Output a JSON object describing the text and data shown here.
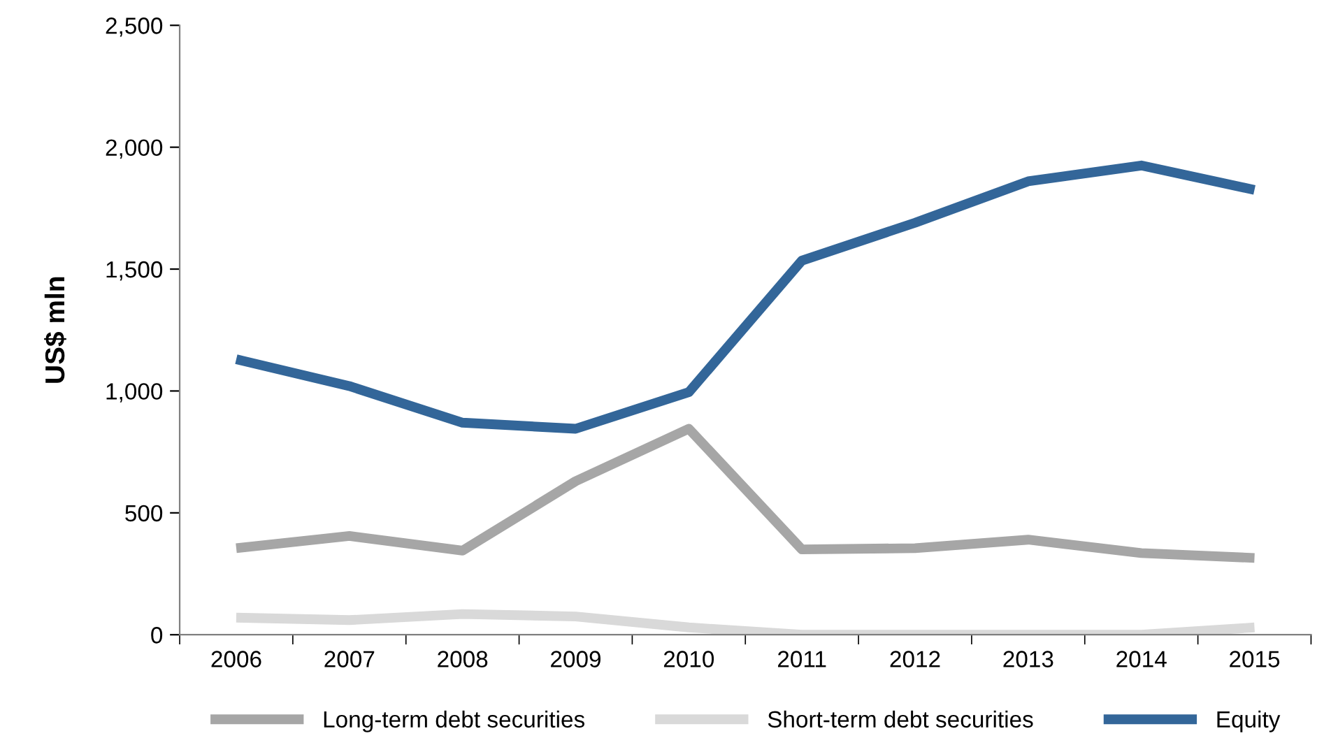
{
  "chart_data": {
    "type": "line",
    "ylabel": "US$ mln",
    "categories": [
      "2006",
      "2007",
      "2008",
      "2009",
      "2010",
      "2011",
      "2012",
      "2013",
      "2014",
      "2015"
    ],
    "series": [
      {
        "name": "Long-term debt securities",
        "color": "#a6a6a6",
        "values": [
          355,
          405,
          345,
          630,
          845,
          350,
          355,
          390,
          335,
          315
        ]
      },
      {
        "name": "Short-term debt securities",
        "color": "#d9d9d9",
        "values": [
          70,
          60,
          85,
          75,
          30,
          0,
          0,
          0,
          0,
          30
        ]
      },
      {
        "name": "Equity",
        "color": "#336699",
        "values": [
          1130,
          1020,
          870,
          845,
          995,
          1535,
          1690,
          1860,
          1925,
          1825
        ]
      }
    ],
    "ylim": [
      0,
      2500
    ],
    "yticks": [
      {
        "value": 0,
        "label": "0"
      },
      {
        "value": 500,
        "label": "500"
      },
      {
        "value": 1000,
        "label": "1,000"
      },
      {
        "value": 1500,
        "label": "1,500"
      },
      {
        "value": 2000,
        "label": "2,000"
      },
      {
        "value": 2500,
        "label": "2,500"
      }
    ],
    "grid": false,
    "legend": "bottom",
    "marker": "none",
    "line_style": "solid"
  }
}
